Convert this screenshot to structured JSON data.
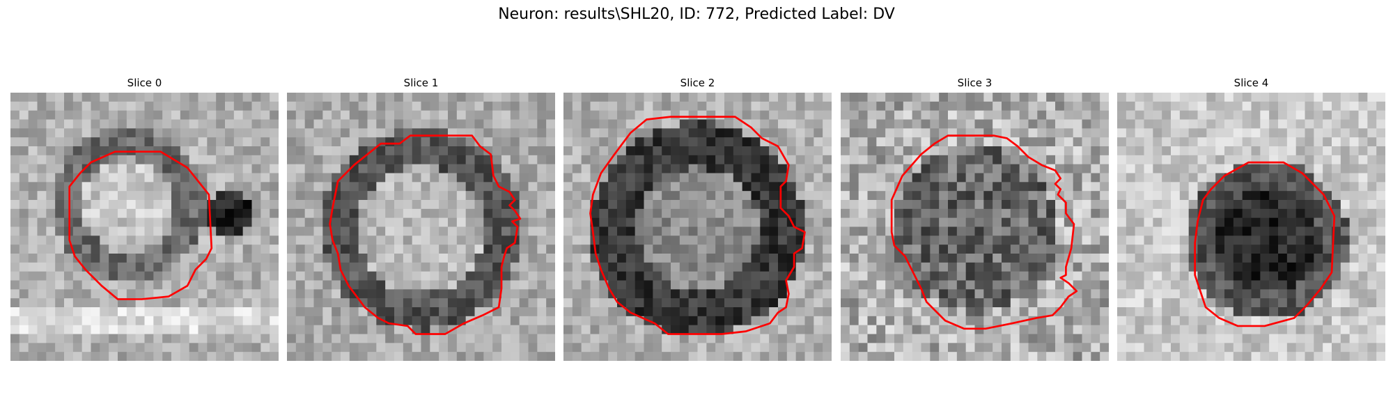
{
  "figure": {
    "title": "Neuron: results\\SHL20, ID: 772, Predicted Label: DV"
  },
  "colors": {
    "contour": "#ff0000",
    "dark": "#000000",
    "light": "#ffffff"
  },
  "slices": [
    {
      "title": "Slice 0",
      "seed": 11,
      "center": [
        0.44,
        0.42
      ],
      "radius": 0.25,
      "cell": "bright",
      "contour": [
        [
          0.39,
          0.22
        ],
        [
          0.56,
          0.22
        ],
        [
          0.66,
          0.28
        ],
        [
          0.74,
          0.38
        ],
        [
          0.75,
          0.58
        ],
        [
          0.73,
          0.62
        ],
        [
          0.69,
          0.66
        ],
        [
          0.66,
          0.72
        ],
        [
          0.59,
          0.76
        ],
        [
          0.49,
          0.77
        ],
        [
          0.4,
          0.77
        ],
        [
          0.34,
          0.72
        ],
        [
          0.28,
          0.66
        ],
        [
          0.24,
          0.61
        ],
        [
          0.22,
          0.55
        ],
        [
          0.22,
          0.35
        ],
        [
          0.26,
          0.3
        ],
        [
          0.3,
          0.26
        ]
      ]
    },
    {
      "title": "Slice 1",
      "seed": 23,
      "center": [
        0.5,
        0.51
      ],
      "radius": 0.34,
      "cell": "bright-ring",
      "contour": [
        [
          0.42,
          0.19
        ],
        [
          0.46,
          0.16
        ],
        [
          0.69,
          0.16
        ],
        [
          0.72,
          0.2
        ],
        [
          0.76,
          0.23
        ],
        [
          0.77,
          0.31
        ],
        [
          0.79,
          0.35
        ],
        [
          0.83,
          0.37
        ],
        [
          0.85,
          0.4
        ],
        [
          0.83,
          0.42
        ],
        [
          0.85,
          0.44
        ],
        [
          0.87,
          0.47
        ],
        [
          0.84,
          0.48
        ],
        [
          0.86,
          0.5
        ],
        [
          0.85,
          0.56
        ],
        [
          0.82,
          0.58
        ],
        [
          0.81,
          0.61
        ],
        [
          0.8,
          0.65
        ],
        [
          0.8,
          0.73
        ],
        [
          0.79,
          0.8
        ],
        [
          0.73,
          0.83
        ],
        [
          0.66,
          0.86
        ],
        [
          0.59,
          0.9
        ],
        [
          0.48,
          0.9
        ],
        [
          0.45,
          0.87
        ],
        [
          0.38,
          0.86
        ],
        [
          0.34,
          0.84
        ],
        [
          0.29,
          0.8
        ],
        [
          0.26,
          0.76
        ],
        [
          0.23,
          0.72
        ],
        [
          0.2,
          0.66
        ],
        [
          0.19,
          0.6
        ],
        [
          0.17,
          0.55
        ],
        [
          0.16,
          0.49
        ],
        [
          0.17,
          0.43
        ],
        [
          0.19,
          0.33
        ],
        [
          0.25,
          0.27
        ],
        [
          0.3,
          0.23
        ],
        [
          0.35,
          0.19
        ]
      ]
    },
    {
      "title": "Slice 2",
      "seed": 37,
      "center": [
        0.5,
        0.51
      ],
      "radius": 0.38,
      "cell": "dark-ring",
      "contour": [
        [
          0.31,
          0.1
        ],
        [
          0.4,
          0.09
        ],
        [
          0.64,
          0.09
        ],
        [
          0.7,
          0.13
        ],
        [
          0.74,
          0.17
        ],
        [
          0.8,
          0.2
        ],
        [
          0.84,
          0.27
        ],
        [
          0.83,
          0.33
        ],
        [
          0.81,
          0.35
        ],
        [
          0.81,
          0.43
        ],
        [
          0.84,
          0.46
        ],
        [
          0.86,
          0.5
        ],
        [
          0.9,
          0.52
        ],
        [
          0.89,
          0.58
        ],
        [
          0.86,
          0.6
        ],
        [
          0.86,
          0.65
        ],
        [
          0.83,
          0.7
        ],
        [
          0.84,
          0.75
        ],
        [
          0.83,
          0.8
        ],
        [
          0.8,
          0.82
        ],
        [
          0.77,
          0.86
        ],
        [
          0.68,
          0.89
        ],
        [
          0.59,
          0.9
        ],
        [
          0.39,
          0.9
        ],
        [
          0.34,
          0.86
        ],
        [
          0.25,
          0.82
        ],
        [
          0.2,
          0.78
        ],
        [
          0.17,
          0.73
        ],
        [
          0.14,
          0.66
        ],
        [
          0.12,
          0.6
        ],
        [
          0.11,
          0.52
        ],
        [
          0.1,
          0.45
        ],
        [
          0.11,
          0.38
        ],
        [
          0.14,
          0.3
        ],
        [
          0.19,
          0.23
        ],
        [
          0.25,
          0.15
        ]
      ]
    },
    {
      "title": "Slice 3",
      "seed": 53,
      "center": [
        0.5,
        0.51
      ],
      "radius": 0.31,
      "cell": "noisy-dark",
      "contour": [
        [
          0.4,
          0.16
        ],
        [
          0.49,
          0.16
        ],
        [
          0.57,
          0.16
        ],
        [
          0.62,
          0.17
        ],
        [
          0.66,
          0.2
        ],
        [
          0.7,
          0.24
        ],
        [
          0.75,
          0.27
        ],
        [
          0.8,
          0.29
        ],
        [
          0.82,
          0.32
        ],
        [
          0.8,
          0.34
        ],
        [
          0.82,
          0.36
        ],
        [
          0.81,
          0.38
        ],
        [
          0.84,
          0.41
        ],
        [
          0.84,
          0.45
        ],
        [
          0.87,
          0.49
        ],
        [
          0.86,
          0.58
        ],
        [
          0.84,
          0.65
        ],
        [
          0.84,
          0.68
        ],
        [
          0.82,
          0.69
        ],
        [
          0.85,
          0.71
        ],
        [
          0.88,
          0.74
        ],
        [
          0.85,
          0.76
        ],
        [
          0.82,
          0.8
        ],
        [
          0.79,
          0.83
        ],
        [
          0.73,
          0.84
        ],
        [
          0.64,
          0.86
        ],
        [
          0.54,
          0.88
        ],
        [
          0.46,
          0.88
        ],
        [
          0.39,
          0.85
        ],
        [
          0.32,
          0.78
        ],
        [
          0.3,
          0.73
        ],
        [
          0.27,
          0.67
        ],
        [
          0.24,
          0.61
        ],
        [
          0.2,
          0.57
        ],
        [
          0.19,
          0.52
        ],
        [
          0.19,
          0.4
        ],
        [
          0.23,
          0.31
        ],
        [
          0.3,
          0.23
        ],
        [
          0.35,
          0.19
        ]
      ]
    },
    {
      "title": "Slice 4",
      "seed": 71,
      "center": [
        0.56,
        0.55
      ],
      "radius": 0.26,
      "cell": "dark-core",
      "contour": [
        [
          0.4,
          0.31
        ],
        [
          0.49,
          0.26
        ],
        [
          0.62,
          0.26
        ],
        [
          0.69,
          0.3
        ],
        [
          0.77,
          0.38
        ],
        [
          0.81,
          0.46
        ],
        [
          0.8,
          0.67
        ],
        [
          0.76,
          0.73
        ],
        [
          0.71,
          0.79
        ],
        [
          0.66,
          0.84
        ],
        [
          0.55,
          0.87
        ],
        [
          0.45,
          0.87
        ],
        [
          0.38,
          0.84
        ],
        [
          0.33,
          0.8
        ],
        [
          0.31,
          0.74
        ],
        [
          0.29,
          0.68
        ],
        [
          0.29,
          0.56
        ],
        [
          0.3,
          0.48
        ],
        [
          0.32,
          0.4
        ],
        [
          0.35,
          0.36
        ]
      ]
    }
  ]
}
